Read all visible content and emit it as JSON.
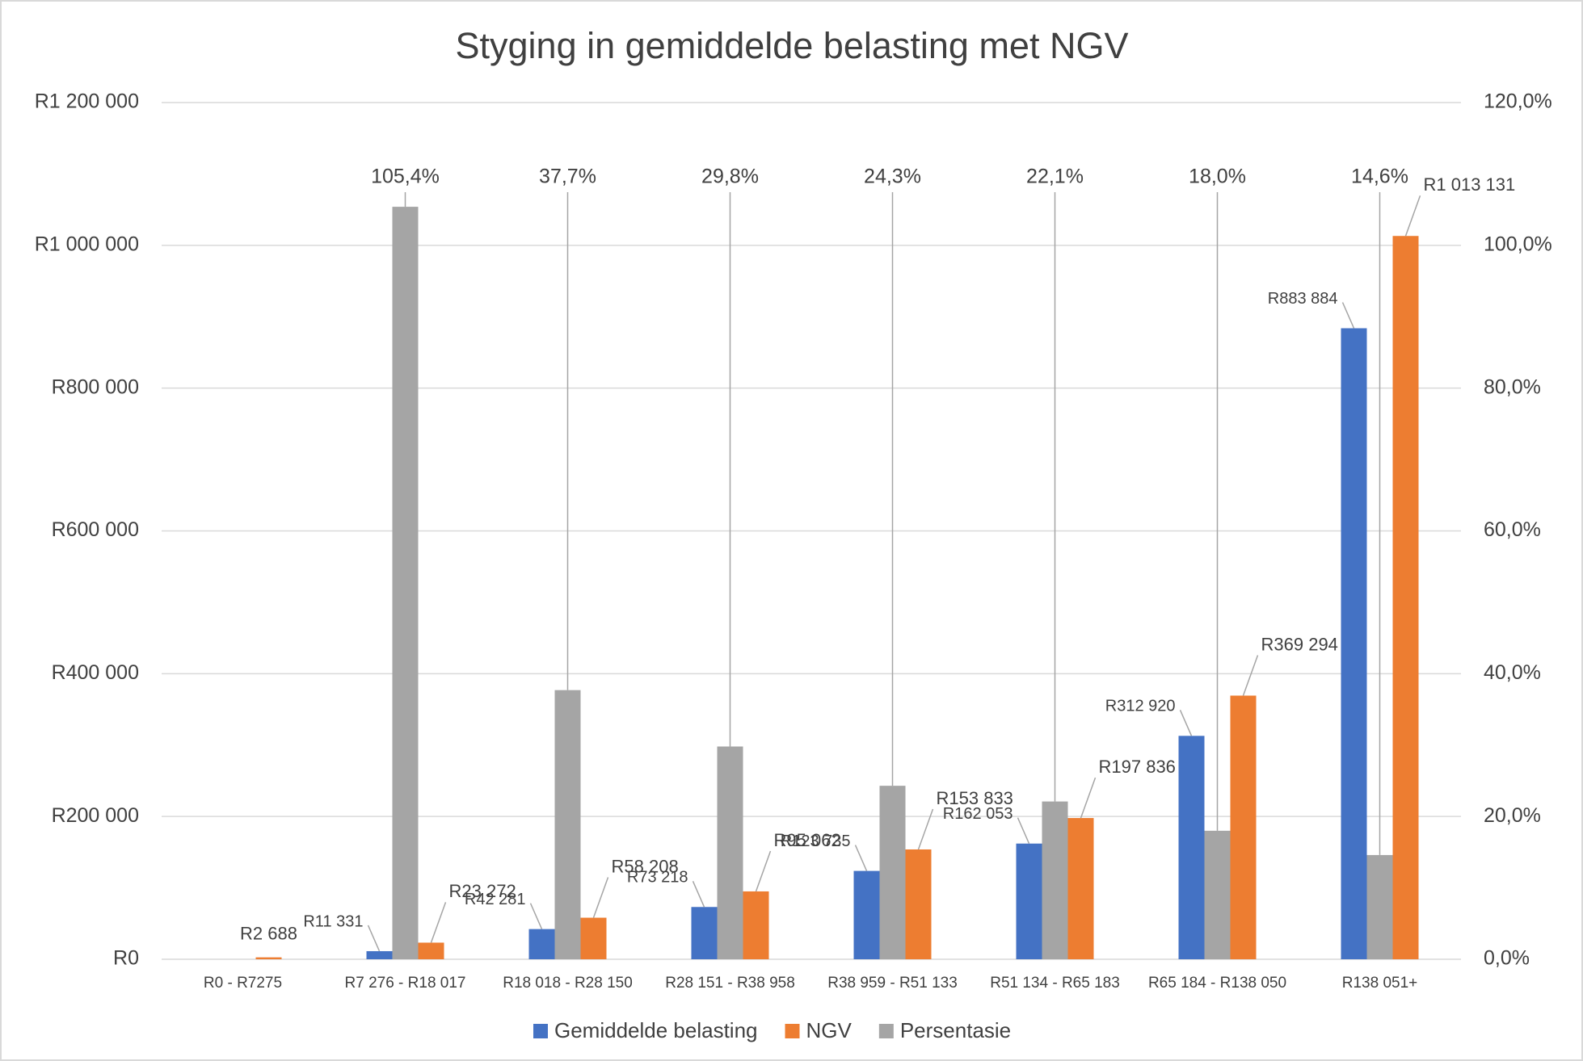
{
  "chart_data": {
    "type": "bar",
    "title": "Styging in gemiddelde belasting met NGV",
    "categories": [
      "R0 - R7275",
      "R7 276 - R18 017",
      "R18 018 - R28 150",
      "R28 151 - R38 958",
      "R38 959 - R51 133",
      "R51 134 - R65 183",
      "R65 184 - R138 050",
      "R138 051+"
    ],
    "series": [
      {
        "name": "Gemiddelde belasting",
        "color": "#4472c4",
        "values": [
          null,
          11331,
          42281,
          73218,
          123735,
          162053,
          312920,
          883884
        ],
        "value_labels": [
          null,
          "R11 331",
          "R42 281",
          "R73 218",
          "R123 735",
          "R162 053",
          "R312 920",
          "R883 884"
        ]
      },
      {
        "name": "NGV",
        "color": "#ed7d31",
        "values": [
          2688,
          23272,
          58208,
          95062,
          153833,
          197836,
          369294,
          1013131
        ],
        "value_labels": [
          "R2 688",
          "R23 272",
          "R58 208",
          "R95 062",
          "R153 833",
          "R197 836",
          "R369 294",
          "R1 013 131"
        ]
      },
      {
        "name": "Persentasie",
        "color": "#a5a5a5",
        "axis": "y2",
        "values": [
          null,
          105.4,
          37.7,
          29.8,
          24.3,
          22.1,
          18.0,
          14.6
        ],
        "value_labels": [
          null,
          "105,4%",
          "37,7%",
          "29,8%",
          "24,3%",
          "22,1%",
          "18,0%",
          "14,6%"
        ]
      }
    ],
    "ylim": [
      0,
      1200000
    ],
    "yticks": [
      {
        "value": 0,
        "label": "R0"
      },
      {
        "value": 200000,
        "label": "R200 000"
      },
      {
        "value": 400000,
        "label": "R400 000"
      },
      {
        "value": 600000,
        "label": "R600 000"
      },
      {
        "value": 800000,
        "label": "R800 000"
      },
      {
        "value": 1000000,
        "label": "R1 000 000"
      },
      {
        "value": 1200000,
        "label": "R1 200 000"
      }
    ],
    "y2lim": [
      0,
      120
    ],
    "y2ticks": [
      {
        "value": 0,
        "label": "0,0%"
      },
      {
        "value": 20,
        "label": "20,0%"
      },
      {
        "value": 40,
        "label": "40,0%"
      },
      {
        "value": 60,
        "label": "60,0%"
      },
      {
        "value": 80,
        "label": "80,0%"
      },
      {
        "value": 100,
        "label": "100,0%"
      },
      {
        "value": 120,
        "label": "120,0%"
      }
    ],
    "grid": true,
    "legend": "bottom"
  }
}
